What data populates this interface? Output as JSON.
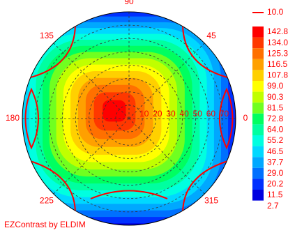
{
  "chart_data": {
    "type": "polar_contour",
    "footer": "EZContrast by ELDIM",
    "angles": [
      90,
      135,
      45,
      180,
      0,
      225,
      315
    ],
    "rlim": [
      0,
      80
    ],
    "rticks": [
      10,
      20,
      30,
      40,
      50,
      60,
      70
    ],
    "contour_line": {
      "value": 10,
      "label": "10.0",
      "color": "#ff0000"
    },
    "levels": [
      142.8,
      {
        "value": 134,
        "label": "134.0"
      },
      125.3,
      116.5,
      107.8,
      {
        "value": 99,
        "label": "99.0"
      },
      90.3,
      81.5,
      72.8,
      {
        "value": 64,
        "label": "64.0"
      },
      55.2,
      46.5,
      37.7,
      {
        "value": 29,
        "label": "29.0"
      },
      20.2,
      11.5,
      2.7
    ],
    "colors": [
      "#ff0000",
      "#ff3800",
      "#ff7000",
      "#ffa000",
      "#ffd000",
      "#ffff00",
      "#c0ff00",
      "#70ff20",
      "#00ff60",
      "#00ffa0",
      "#00ffe0",
      "#00d8ff",
      "#00a8ff",
      "#0070ff",
      "#0030ff",
      "#0000e0"
    ]
  }
}
